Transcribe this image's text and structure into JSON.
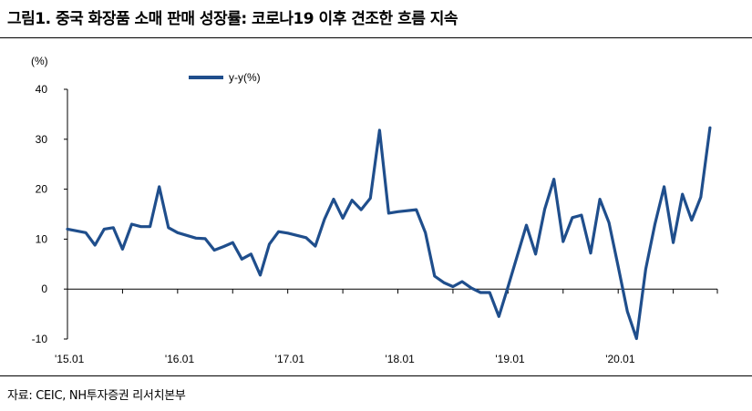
{
  "title": "그림1. 중국 화장품 소매 판매 성장률: 코로나19 이후 견조한 흐름 지속",
  "source": "자료: CEIC, NH투자증권 리서치본부",
  "colors": {
    "series": "#1f4e8c",
    "axis": "#000000"
  },
  "chart_data": {
    "type": "line",
    "title": "그림1. 중국 화장품 소매 판매 성장률: 코로나19 이후 견조한 흐름 지속",
    "ylabel": "(%)",
    "xlabel": "",
    "ylim": [
      -10,
      40
    ],
    "yticks": [
      -10,
      0,
      10,
      20,
      30,
      40
    ],
    "xlim": [
      0,
      71
    ],
    "xticks": [
      {
        "index": 0,
        "label": "'15.01"
      },
      {
        "index": 12,
        "label": "'16.01"
      },
      {
        "index": 24,
        "label": "'17.01"
      },
      {
        "index": 36,
        "label": "'18.01"
      },
      {
        "index": 48,
        "label": "'19.01"
      },
      {
        "index": 60,
        "label": "'20.01"
      }
    ],
    "legend": "top-left",
    "grid": false,
    "series": [
      {
        "name": "y-y(%)",
        "x": [
          0,
          2,
          3,
          4,
          5,
          6,
          7,
          8,
          9,
          10,
          11,
          12,
          14,
          15,
          16,
          17,
          18,
          19,
          20,
          21,
          22,
          23,
          24,
          26,
          27,
          28,
          29,
          30,
          31,
          32,
          33,
          34,
          35,
          36,
          38,
          39,
          40,
          41,
          42,
          43,
          44,
          45,
          46,
          47,
          48,
          50,
          51,
          52,
          53,
          54,
          55,
          56,
          57,
          58,
          59,
          60,
          61,
          62,
          63,
          64,
          65,
          66,
          67,
          68,
          69,
          70
        ],
        "values": [
          12,
          11.3,
          8.8,
          12.0,
          12.3,
          8.0,
          13.0,
          12.5,
          12.5,
          20.5,
          12.3,
          11.3,
          10.2,
          10.1,
          7.8,
          8.5,
          9.3,
          6.0,
          7.0,
          2.8,
          9.0,
          11.5,
          11.2,
          10.3,
          8.6,
          14.0,
          18.0,
          14.2,
          17.8,
          15.9,
          18.2,
          31.8,
          15.2,
          15.5,
          15.9,
          11.3,
          2.6,
          1.3,
          0.5,
          1.5,
          0.2,
          -0.7,
          -0.7,
          -5.5,
          0.5,
          12.8,
          7.0,
          16.0,
          22.0,
          9.5,
          14.3,
          14.8,
          7.2,
          18.0,
          13.3,
          4.5,
          -4.5,
          -9.9,
          4.0,
          13.0,
          20.5,
          9.3,
          19.0,
          13.8,
          18.4,
          32.3
        ]
      }
    ]
  }
}
